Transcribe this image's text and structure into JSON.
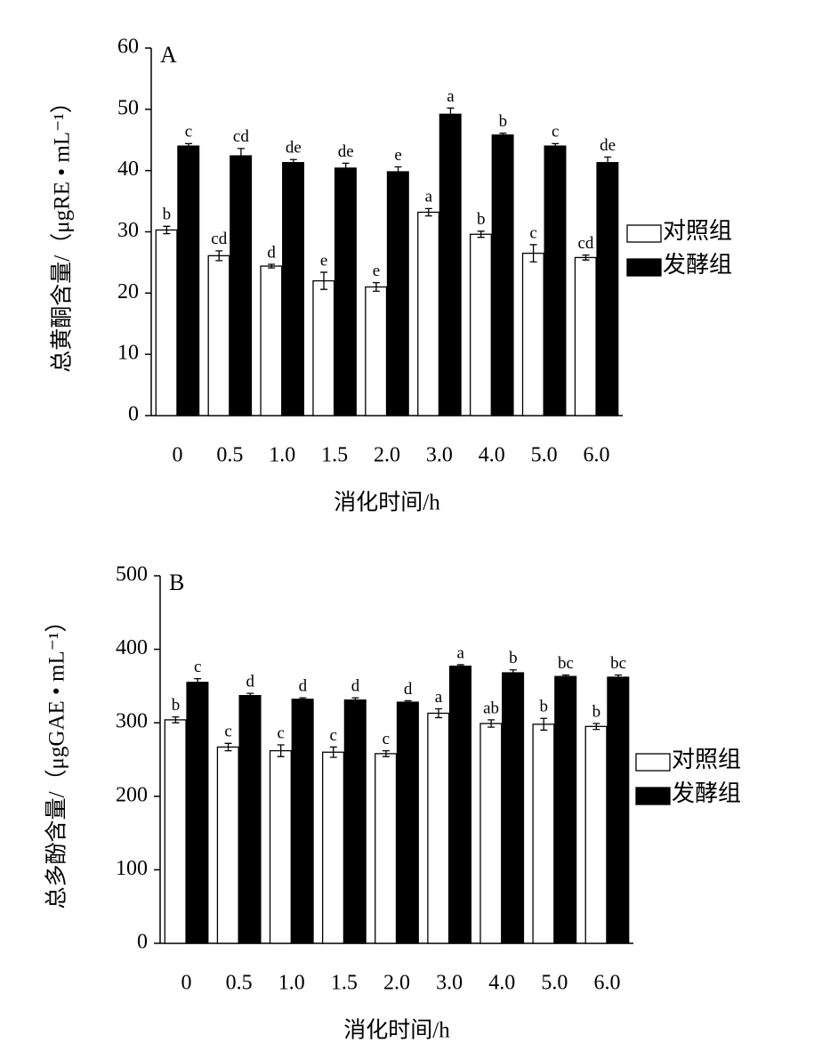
{
  "chart_data": [
    {
      "type": "bar",
      "panel_label": "A",
      "y_label": "总黄酮含量/（μgRE • mL⁻¹）",
      "x_label": "消化时间/h",
      "categories": [
        "0",
        "0.5",
        "1.0",
        "1.5",
        "2.0",
        "3.0",
        "4.0",
        "5.0",
        "6.0"
      ],
      "series": [
        {
          "name": "对照组",
          "color": "#ffffff",
          "values": [
            30.3,
            26.1,
            24.4,
            22.0,
            21.0,
            33.2,
            29.6,
            26.5,
            25.8
          ],
          "errors": [
            0.6,
            0.8,
            0.3,
            1.4,
            0.7,
            0.6,
            0.5,
            1.4,
            0.4
          ],
          "annotations": [
            "b",
            "cd",
            "d",
            "e",
            "e",
            "a",
            "b",
            "c",
            "cd"
          ]
        },
        {
          "name": "发酵组",
          "color": "#000000",
          "values": [
            44.0,
            42.4,
            41.3,
            40.4,
            39.8,
            49.2,
            45.8,
            44.0,
            41.3
          ],
          "errors": [
            0.4,
            1.2,
            0.5,
            0.8,
            0.8,
            1.0,
            0.3,
            0.4,
            0.9
          ],
          "annotations": [
            "c",
            "cd",
            "de",
            "de",
            "e",
            "a",
            "b",
            "c",
            "de"
          ]
        }
      ],
      "ylim": [
        0,
        60
      ],
      "yticks": [
        0,
        10,
        20,
        30,
        40,
        50,
        60
      ],
      "legend": "right"
    },
    {
      "type": "bar",
      "panel_label": "B",
      "y_label": "总多酚含量/（μgGAE • mL⁻¹）",
      "x_label": "消化时间/h",
      "categories": [
        "0",
        "0.5",
        "1.0",
        "1.5",
        "2.0",
        "3.0",
        "4.0",
        "5.0",
        "6.0"
      ],
      "series": [
        {
          "name": "对照组",
          "color": "#ffffff",
          "values": [
            304,
            267,
            262,
            260,
            258,
            313,
            299,
            298,
            295
          ],
          "errors": [
            4,
            5,
            8,
            7,
            4,
            6,
            5,
            8,
            4
          ],
          "annotations": [
            "b",
            "c",
            "c",
            "c",
            "c",
            "a",
            "ab",
            "b",
            "b"
          ]
        },
        {
          "name": "发酵组",
          "color": "#000000",
          "values": [
            355,
            337,
            332,
            331,
            328,
            377,
            368,
            363,
            362
          ],
          "errors": [
            5,
            3,
            2,
            3,
            2,
            2,
            4,
            2,
            3
          ],
          "annotations": [
            "c",
            "d",
            "d",
            "d",
            "d",
            "a",
            "b",
            "bc",
            "bc"
          ]
        }
      ],
      "ylim": [
        0,
        500
      ],
      "yticks": [
        0,
        100,
        200,
        300,
        400,
        500
      ],
      "legend": "right"
    }
  ]
}
